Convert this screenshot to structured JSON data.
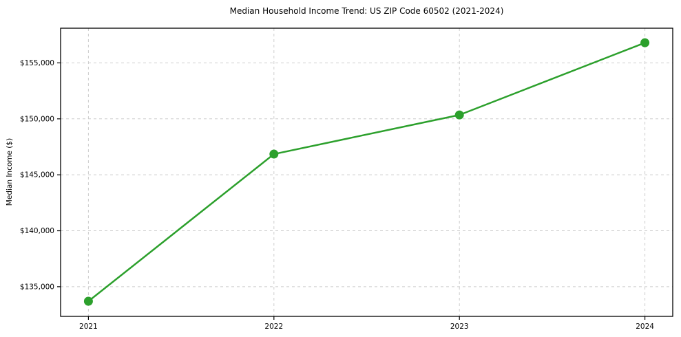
{
  "chart_data": {
    "type": "line",
    "title": "Median Household Income Trend: US ZIP Code 60502 (2021-2024)",
    "xlabel": "",
    "ylabel": "Median Income ($)",
    "x": [
      2021,
      2022,
      2023,
      2024
    ],
    "x_tick_labels": [
      "2021",
      "2022",
      "2023",
      "2024"
    ],
    "series": [
      {
        "name": "Median Household Income",
        "values": [
          133700,
          146850,
          150350,
          156800
        ],
        "color": "#2ca02c"
      }
    ],
    "y_ticks": [
      135000,
      140000,
      145000,
      150000,
      155000
    ],
    "y_tick_labels": [
      "$135,000",
      "$140,000",
      "$145,000",
      "$150,000",
      "$155,000"
    ],
    "xlim": [
      2020.85,
      2024.15
    ],
    "ylim": [
      132350,
      158100
    ],
    "grid": true,
    "grid_style": "dashed",
    "grid_color": "#cccccc",
    "frame_color": "#000000",
    "background_color": "#ffffff",
    "legend_position": "none",
    "marker": "circle",
    "marker_radius": 6.5,
    "line_width": 2.5
  }
}
